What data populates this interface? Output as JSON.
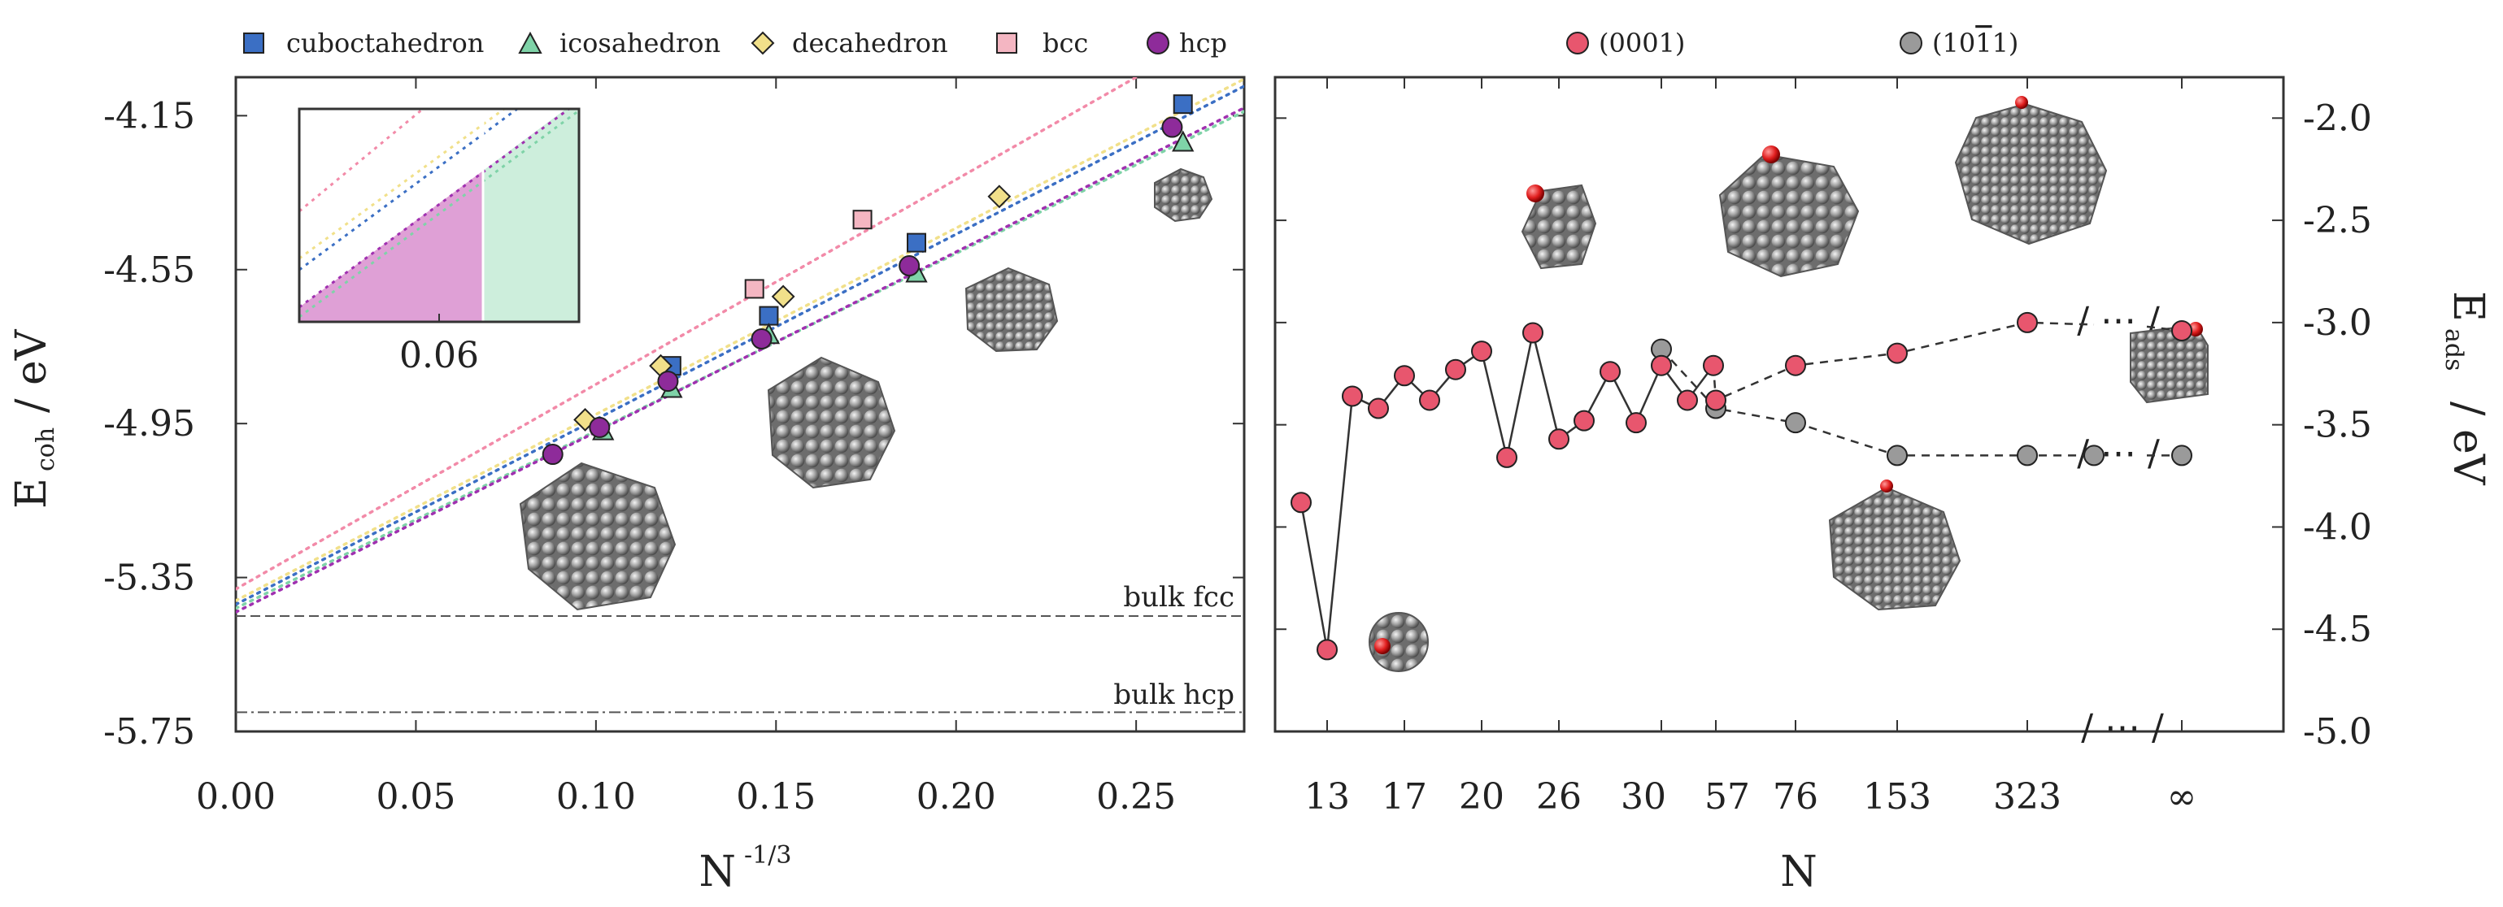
{
  "chart_data": [
    {
      "type": "scatter",
      "panel": "left",
      "xlabel_main": "N",
      "xlabel_sup": "-1/3",
      "ylabel_main": "E",
      "ylabel_sub": "coh",
      "ylabel_unit": "/ eV",
      "xlim": [
        0.0,
        0.28
      ],
      "ylim": [
        -5.75,
        -4.05
      ],
      "xticks": [
        0.0,
        0.05,
        0.1,
        0.15,
        0.2,
        0.25
      ],
      "xtick_labels": [
        "0.00",
        "0.05",
        "0.10",
        "0.15",
        "0.20",
        "0.25"
      ],
      "yticks": [
        -4.15,
        -4.55,
        -4.95,
        -5.35,
        -5.75
      ],
      "ytick_labels": [
        "-4.15",
        "-4.55",
        "-4.95",
        "-5.35",
        "-5.75"
      ],
      "series": [
        {
          "name": "cuboctahedron",
          "marker": "square",
          "color": "#3b6fc4",
          "fit_color": "#3b6fc4",
          "x": [
            0.121,
            0.148,
            0.189,
            0.263
          ],
          "y": [
            -4.8,
            -4.67,
            -4.48,
            -4.12
          ],
          "fit": [
            -5.42,
            4.81
          ]
        },
        {
          "name": "icosahedron",
          "marker": "triangle",
          "color": "#7fd3a8",
          "fit_color": "#7fd3a8",
          "x": [
            0.102,
            0.121,
            0.148,
            0.189,
            0.263
          ],
          "y": [
            -4.97,
            -4.86,
            -4.72,
            -4.56,
            -4.22
          ],
          "fit": [
            -5.43,
            4.61
          ]
        },
        {
          "name": "decahedron",
          "marker": "diamond",
          "color": "#f1e08a",
          "fit_color": "#f1e08a",
          "x": [
            0.097,
            0.118,
            0.152,
            0.212
          ],
          "y": [
            -4.94,
            -4.8,
            -4.62,
            -4.36
          ],
          "fit": [
            -5.41,
            4.84
          ]
        },
        {
          "name": "bcc",
          "marker": "square",
          "color": "#f4b6c2",
          "fit_color": "#f28aa8",
          "x": [
            0.144,
            0.174
          ],
          "y": [
            -4.6,
            -4.42
          ],
          "fit": [
            -5.38,
            5.32
          ]
        },
        {
          "name": "hcp",
          "marker": "circle",
          "color": "#8e2b9a",
          "fit_color": "#a030b0",
          "x": [
            0.088,
            0.101,
            0.12,
            0.146,
            0.187,
            0.26
          ],
          "y": [
            -5.03,
            -4.96,
            -4.84,
            -4.73,
            -4.54,
            -4.18
          ],
          "fit": [
            -5.44,
            4.68
          ]
        }
      ],
      "reference_lines": [
        {
          "label": "bulk fcc",
          "y": -5.45,
          "style": "dashed"
        },
        {
          "label": "bulk hcp",
          "y": -5.7,
          "style": "dashdot"
        }
      ],
      "inset": {
        "tick_label": "0.06",
        "xlim": [
          0.0,
          0.1
        ],
        "ylim": [
          0.0,
          1.0
        ],
        "shaded_split": 0.065
      }
    },
    {
      "type": "line",
      "panel": "right",
      "xlabel": "N",
      "ylabel_main": "E",
      "ylabel_sub": "ads",
      "ylabel_unit": "/ eV",
      "ylim": [
        -5.0,
        -1.8
      ],
      "yticks": [
        -2.0,
        -2.5,
        -3.0,
        -3.5,
        -4.0,
        -4.5,
        -5.0
      ],
      "ytick_labels": [
        "-2.0",
        "-2.5",
        "-3.0",
        "-3.5",
        "-4.0",
        "-4.5",
        "-5.0"
      ],
      "xtick_labels": [
        "13",
        "17",
        "20",
        "26",
        "30",
        "57",
        "76",
        "153",
        "323",
        "∞"
      ],
      "break_symbol": "/ ⋯ /",
      "series": [
        {
          "name": "(0001)",
          "color": "#e8566e",
          "x_index": [
            0,
            1,
            2,
            3,
            4,
            5,
            6,
            7,
            8,
            9,
            10,
            11,
            12,
            13,
            14,
            15,
            16
          ],
          "y": [
            -3.88,
            -4.6,
            -3.36,
            -3.42,
            -3.26,
            -3.38,
            -3.23,
            -3.14,
            -3.66,
            -3.05,
            -3.57,
            -3.48,
            -3.24,
            -3.49,
            -3.21,
            -3.38,
            -3.21
          ],
          "tail_y": [
            -3.15,
            -3.0,
            -3.04
          ]
        },
        {
          "name": "(1011)",
          "color": "#9a9a9a",
          "tail_y": [
            -3.13,
            -3.42,
            -3.49,
            -3.65,
            -3.65,
            -3.65
          ]
        }
      ]
    }
  ]
}
